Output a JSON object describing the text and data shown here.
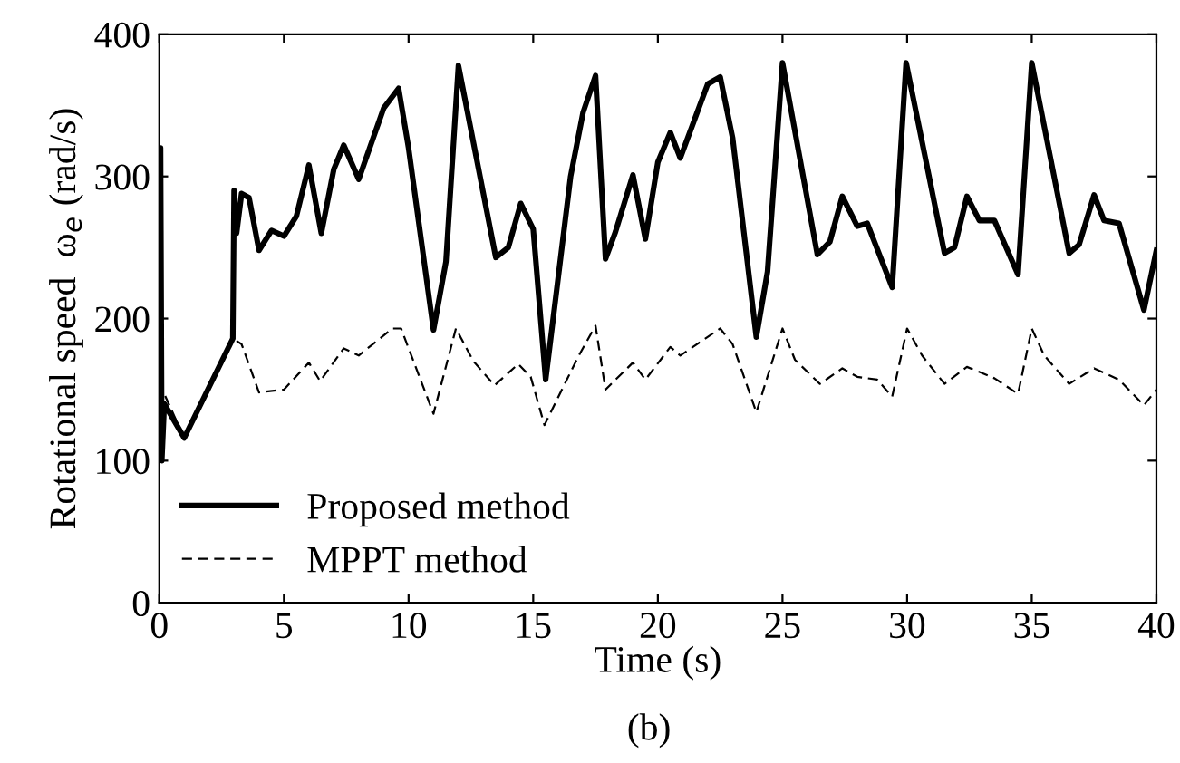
{
  "chart_data": {
    "type": "line",
    "xlabel": "Time (s)",
    "ylabel": "Rotational speed  ω$_{e}$ (rad/s)",
    "annotations": [
      "(b)"
    ],
    "xlim": [
      0,
      40
    ],
    "ylim": [
      0,
      400
    ],
    "xticks": [
      0,
      5,
      10,
      15,
      20,
      25,
      30,
      35,
      40
    ],
    "yticks": [
      0,
      100,
      200,
      300,
      400
    ],
    "grid": false,
    "legend": "bottom left",
    "series": [
      {
        "name": "Proposed method",
        "color": "#000000",
        "line_style": "solid",
        "x": [
          0,
          0.05,
          0.1,
          0.2,
          1.0,
          2.95,
          3.0,
          3.1,
          3.3,
          3.6,
          4.0,
          4.5,
          5.0,
          5.5,
          6.0,
          6.5,
          7.0,
          7.4,
          8.0,
          9.0,
          9.6,
          10.0,
          11.0,
          11.5,
          12.0,
          13.5,
          14.0,
          14.5,
          15.0,
          15.5,
          16.5,
          17.0,
          17.5,
          17.9,
          18.3,
          19.0,
          19.5,
          20.0,
          20.5,
          20.9,
          22.0,
          22.5,
          23.0,
          23.95,
          24.4,
          25.0,
          26.4,
          26.9,
          27.4,
          28.0,
          28.4,
          29.4,
          29.96,
          31.5,
          31.9,
          32.4,
          32.9,
          33.5,
          34.45,
          35.0,
          36.5,
          36.9,
          37.5,
          37.9,
          38.5,
          39.5,
          40
        ],
        "values": [
          240,
          320,
          100,
          140,
          116,
          186,
          290,
          260,
          288,
          285,
          248,
          262,
          258,
          272,
          308,
          260,
          305,
          322,
          298,
          348,
          362,
          320,
          192,
          240,
          378,
          243,
          250,
          281,
          263,
          157,
          300,
          345,
          371,
          242,
          261,
          301,
          256,
          310,
          331,
          313,
          365,
          370,
          327,
          187,
          233,
          380,
          245,
          254,
          286,
          265,
          267,
          222,
          380,
          246,
          250,
          286,
          269,
          269,
          231,
          380,
          246,
          252,
          287,
          269,
          267,
          206,
          248
        ]
      },
      {
        "name": "MPPT method",
        "color": "#000000",
        "line_style": "dashed",
        "x": [
          0,
          0.17,
          1.0,
          2.95,
          3.3,
          4.0,
          5.0,
          6.0,
          6.45,
          7.4,
          8.0,
          9.35,
          9.7,
          11.0,
          11.9,
          12.6,
          13.45,
          14.4,
          14.9,
          15.45,
          16.8,
          17.5,
          17.9,
          19.0,
          19.5,
          20.5,
          20.9,
          22.5,
          23.0,
          23.95,
          25.0,
          25.5,
          26.5,
          27.4,
          28.0,
          28.8,
          29.4,
          30.0,
          30.6,
          31.5,
          32.4,
          33.5,
          34.45,
          35.0,
          35.5,
          36.5,
          37.5,
          38.5,
          39.5,
          40
        ],
        "values": [
          140,
          148,
          116,
          186,
          182,
          148,
          150,
          169,
          156,
          179,
          174,
          193,
          193,
          133,
          193,
          170,
          153,
          168,
          159,
          125,
          173,
          195,
          150,
          169,
          157,
          180,
          174,
          193,
          182,
          134,
          193,
          171,
          154,
          165,
          159,
          157,
          145,
          193,
          174,
          154,
          166,
          158,
          147,
          193,
          174,
          154,
          165,
          157,
          139,
          150
        ]
      }
    ]
  }
}
